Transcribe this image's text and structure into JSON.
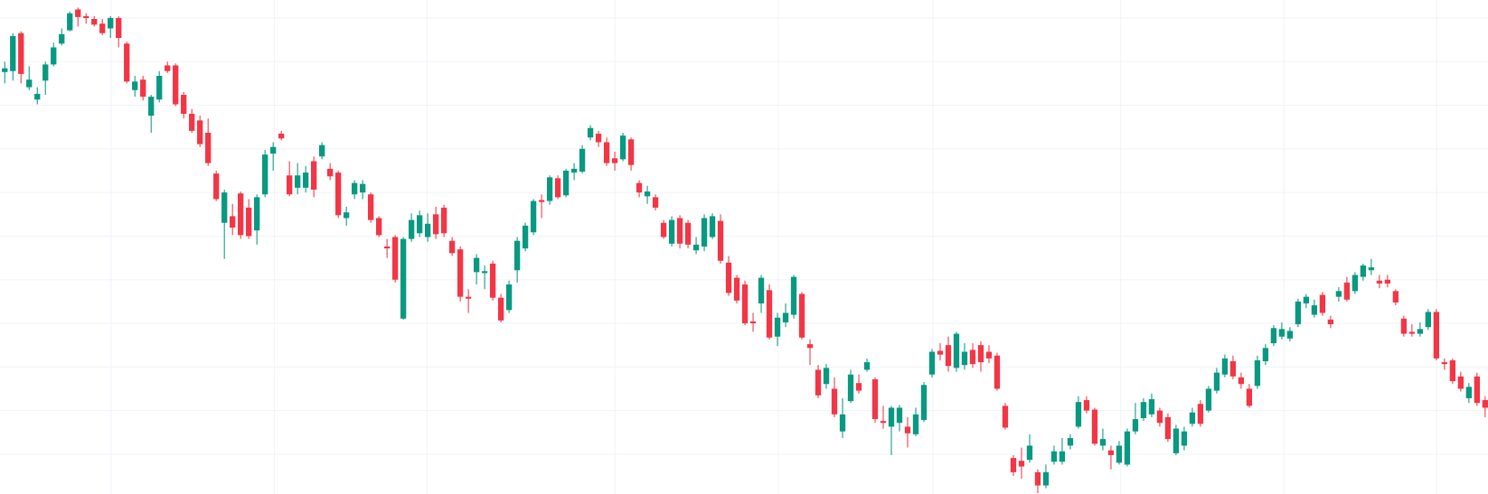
{
  "chart_data": {
    "type": "candlestick",
    "up_color": "#089981",
    "down_color": "#f23645",
    "grid": true,
    "ylim": [
      0,
      521
    ],
    "yticks": [
      502,
      456,
      410,
      364,
      318,
      272,
      226,
      180,
      134,
      88,
      42
    ],
    "open": [
      445,
      446,
      486,
      429,
      416,
      436,
      453,
      475,
      489,
      511,
      504,
      501,
      496,
      491,
      502,
      475,
      426,
      437,
      399,
      416,
      452,
      452,
      421,
      401,
      394,
      381,
      338,
      286,
      293,
      317,
      302,
      278,
      316,
      359,
      380,
      336,
      323,
      323,
      351,
      356,
      343,
      339,
      291,
      316,
      318,
      316,
      291,
      261,
      271,
      185,
      269,
      275,
      271,
      295,
      302,
      267,
      258,
      208,
      234,
      233,
      243,
      207,
      194,
      236,
      259,
      276,
      310,
      309,
      333,
      315,
      339,
      340,
      376,
      380,
      371,
      354,
      353,
      374,
      328,
      314,
      313,
      286,
      264,
      291,
      286,
      257,
      261,
      271,
      288,
      244,
      228,
      221,
      182,
      201,
      215,
      166,
      181,
      189,
      211,
      158,
      131,
      116,
      111,
      66,
      98,
      117,
      131,
      121,
      77,
      71,
      75,
      71,
      63,
      78,
      126,
      151,
      157,
      133,
      136,
      152,
      157,
      150,
      146,
      93,
      38,
      35,
      36,
      23,
      9,
      34,
      34,
      51,
      71,
      99,
      89,
      51,
      46,
      33,
      31,
      66,
      80,
      84,
      88,
      81,
      43,
      51,
      74,
      95,
      88,
      109,
      126,
      140,
      123,
      111,
      114,
      140,
      159,
      166,
      164,
      179,
      201,
      189,
      210,
      184,
      208,
      223,
      214,
      229,
      236,
      225,
      226,
      214,
      185,
      171,
      169,
      176,
      192,
      139,
      141,
      124,
      101,
      124,
      99
    ],
    "high": [
      456,
      486,
      488,
      451,
      429,
      456,
      476,
      491,
      509,
      513,
      507,
      504,
      501,
      504,
      504,
      477,
      441,
      441,
      421,
      446,
      456,
      454,
      424,
      406,
      399,
      396,
      341,
      321,
      306,
      319,
      311,
      316,
      363,
      371,
      383,
      351,
      349,
      346,
      356,
      371,
      349,
      341,
      303,
      331,
      331,
      318,
      293,
      269,
      273,
      271,
      296,
      299,
      296,
      303,
      305,
      271,
      261,
      216,
      253,
      241,
      246,
      211,
      225,
      271,
      286,
      311,
      316,
      336,
      336,
      343,
      349,
      368,
      389,
      383,
      376,
      361,
      381,
      376,
      331,
      325,
      316,
      289,
      293,
      294,
      289,
      271,
      295,
      296,
      295,
      251,
      231,
      225,
      191,
      231,
      221,
      191,
      201,
      231,
      213,
      163,
      136,
      137,
      123,
      101,
      131,
      126,
      143,
      123,
      93,
      93,
      94,
      81,
      91,
      118,
      153,
      159,
      166,
      171,
      159,
      159,
      161,
      157,
      149,
      96,
      41,
      49,
      63,
      26,
      31,
      51,
      59,
      63,
      103,
      103,
      91,
      69,
      51,
      56,
      69,
      96,
      101,
      106,
      91,
      85,
      73,
      71,
      91,
      99,
      114,
      133,
      147,
      146,
      128,
      116,
      146,
      158,
      178,
      181,
      176,
      206,
      211,
      205,
      213,
      188,
      218,
      229,
      234,
      243,
      248,
      231,
      231,
      216,
      188,
      179,
      181,
      195,
      195,
      143,
      143,
      129,
      117,
      128,
      103
    ],
    "low": [
      433,
      436,
      433,
      426,
      411,
      421,
      451,
      473,
      488,
      493,
      496,
      493,
      484,
      481,
      471,
      433,
      419,
      415,
      381,
      413,
      444,
      409,
      396,
      381,
      366,
      346,
      309,
      248,
      273,
      269,
      269,
      263,
      313,
      341,
      373,
      314,
      316,
      318,
      313,
      353,
      331,
      291,
      283,
      311,
      311,
      286,
      271,
      249,
      223,
      184,
      266,
      271,
      266,
      269,
      271,
      251,
      203,
      191,
      221,
      216,
      204,
      181,
      191,
      223,
      256,
      273,
      291,
      305,
      311,
      313,
      331,
      338,
      373,
      366,
      346,
      341,
      351,
      341,
      313,
      306,
      299,
      269,
      261,
      259,
      259,
      253,
      256,
      269,
      243,
      209,
      201,
      178,
      171,
      191,
      163,
      156,
      176,
      185,
      163,
      136,
      101,
      111,
      81,
      59,
      96,
      106,
      129,
      75,
      69,
      41,
      66,
      49,
      61,
      76,
      123,
      141,
      129,
      129,
      131,
      133,
      129,
      138,
      109,
      68,
      19,
      16,
      33,
      1,
      6,
      31,
      31,
      47,
      69,
      85,
      51,
      46,
      26,
      31,
      29,
      63,
      77,
      81,
      71,
      55,
      41,
      46,
      71,
      71,
      86,
      106,
      123,
      121,
      111,
      91,
      111,
      136,
      156,
      163,
      161,
      176,
      196,
      186,
      188,
      175,
      203,
      203,
      211,
      225,
      231,
      217,
      218,
      199,
      166,
      166,
      166,
      173,
      141,
      131,
      116,
      108,
      96,
      93,
      81
    ],
    "close": [
      449,
      483,
      443,
      437,
      422,
      453,
      471,
      485,
      507,
      503,
      502,
      495,
      486,
      502,
      481,
      435,
      435,
      419,
      419,
      441,
      446,
      411,
      401,
      383,
      369,
      349,
      311,
      318,
      281,
      273,
      272,
      313,
      358,
      366,
      375,
      316,
      336,
      339,
      321,
      368,
      335,
      294,
      297,
      328,
      327,
      289,
      273,
      259,
      226,
      269,
      289,
      294,
      285,
      274,
      275,
      254,
      208,
      206,
      249,
      235,
      207,
      183,
      221,
      267,
      283,
      309,
      308,
      334,
      313,
      341,
      343,
      364,
      386,
      371,
      349,
      349,
      378,
      347,
      318,
      319,
      302,
      271,
      289,
      264,
      263,
      263,
      291,
      293,
      246,
      212,
      204,
      180,
      180,
      228,
      165,
      186,
      191,
      229,
      165,
      154,
      104,
      133,
      84,
      84,
      126,
      109,
      139,
      79,
      75,
      91,
      91,
      64,
      84,
      115,
      150,
      147,
      135,
      169,
      150,
      137,
      139,
      143,
      111,
      70,
      23,
      29,
      51,
      9,
      23,
      45,
      45,
      59,
      97,
      88,
      53,
      58,
      41,
      51,
      66,
      79,
      97,
      100,
      75,
      58,
      69,
      66,
      86,
      74,
      111,
      128,
      143,
      124,
      116,
      93,
      141,
      154,
      175,
      174,
      172,
      203,
      208,
      199,
      191,
      179,
      214,
      205,
      231,
      241,
      239,
      222,
      222,
      202,
      169,
      169,
      174,
      192,
      143,
      137,
      119,
      111,
      113,
      96,
      91
    ]
  }
}
